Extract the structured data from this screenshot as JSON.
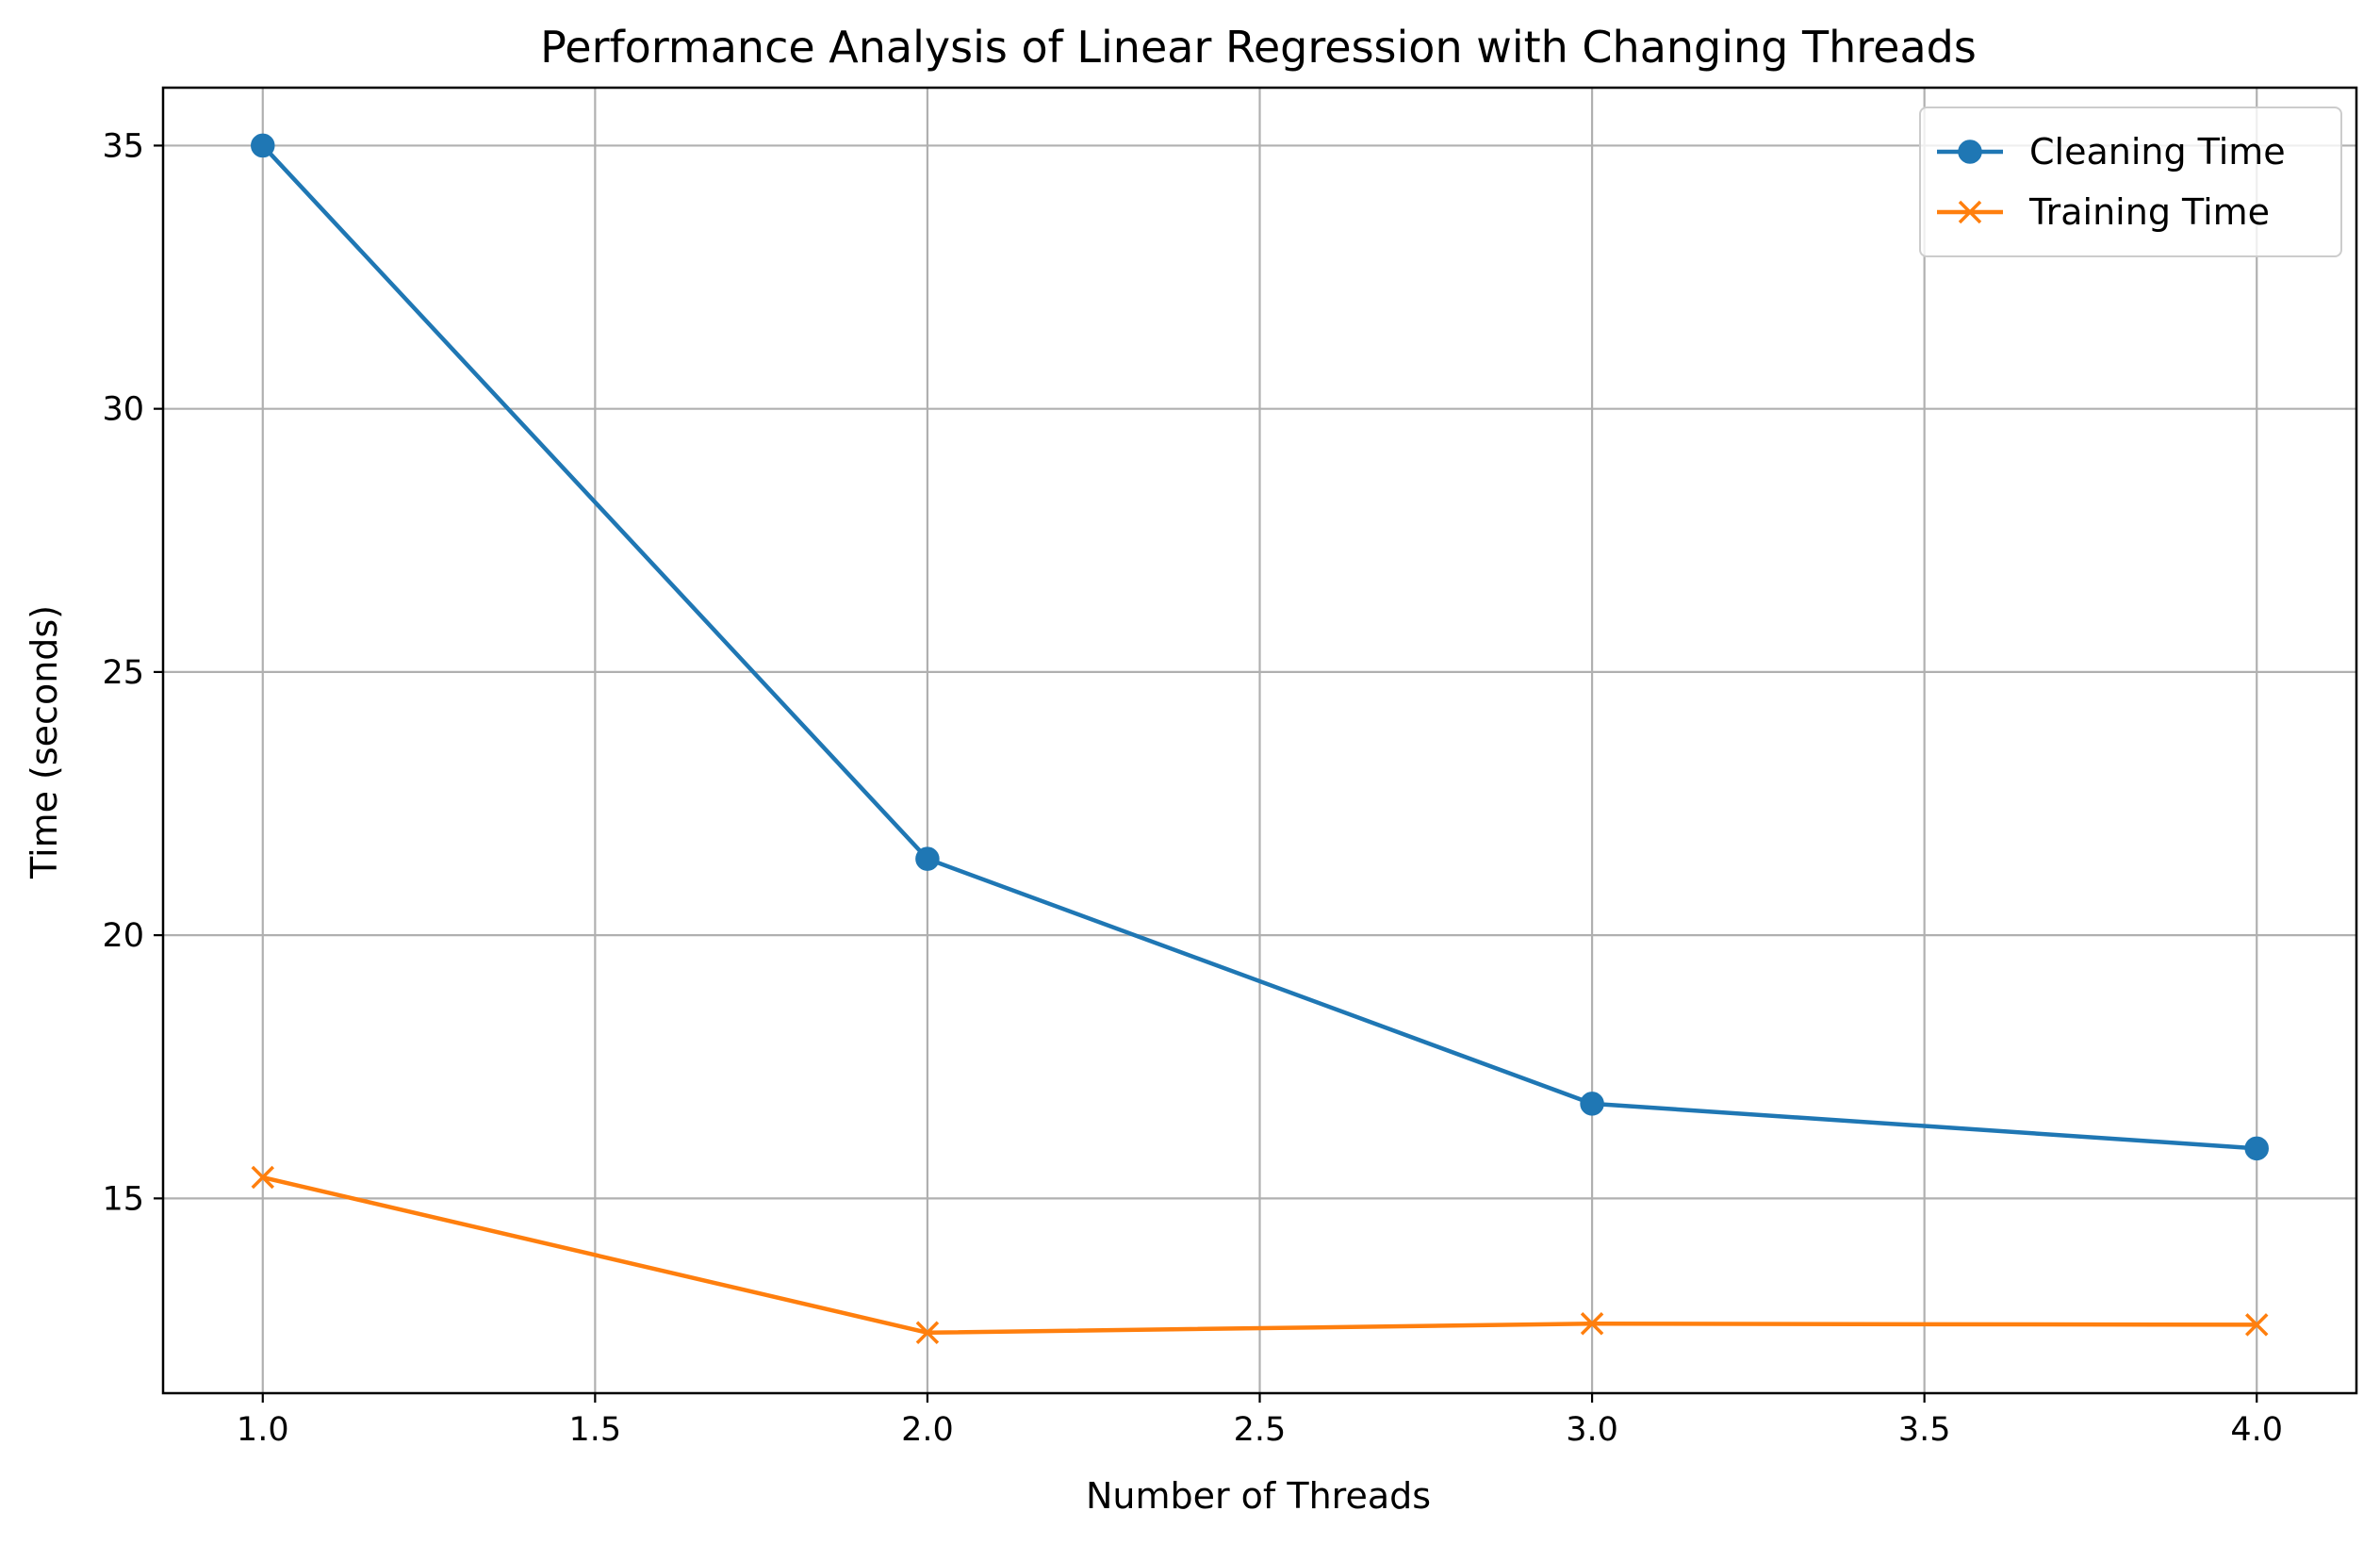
{
  "chart_data": {
    "type": "line",
    "title": "Performance Analysis of Linear Regression with Changing Threads",
    "xlabel": "Number of Threads",
    "ylabel": "Time (seconds)",
    "x": [
      1.0,
      2.0,
      3.0,
      4.0
    ],
    "xlim": [
      0.85,
      4.15
    ],
    "ylim": [
      11.3,
      36.1
    ],
    "xticks": [
      "1.0",
      "1.5",
      "2.0",
      "2.5",
      "3.0",
      "3.5",
      "4.0"
    ],
    "yticks": [
      "15",
      "20",
      "25",
      "30",
      "35"
    ],
    "grid": true,
    "legend_position": "top-right",
    "series": [
      {
        "name": "Cleaning Time",
        "values": [
          35.0,
          21.45,
          16.8,
          15.95
        ],
        "color": "#1f77b4",
        "marker": "circle"
      },
      {
        "name": "Training Time",
        "values": [
          15.4,
          12.45,
          12.62,
          12.6
        ],
        "color": "#ff7f0e",
        "marker": "x"
      }
    ]
  }
}
